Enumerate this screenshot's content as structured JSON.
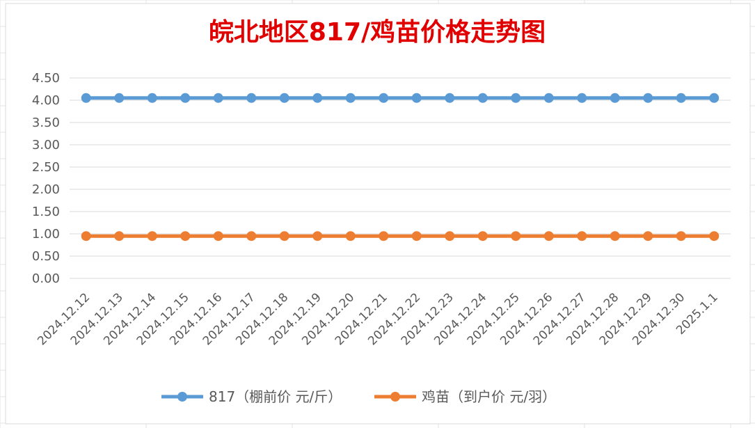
{
  "chart_data": {
    "type": "line",
    "title": "皖北地区817/鸡苗价格走势图",
    "title_color": "#e00000",
    "categories": [
      "2024.12.12",
      "2024.12.13",
      "2024.12.14",
      "2024.12.15",
      "2024.12.16",
      "2024.12.17",
      "2024.12.18",
      "2024.12.19",
      "2024.12.20",
      "2024.12.21",
      "2024.12.22",
      "2024.12.23",
      "2024.12.24",
      "2024.12.25",
      "2024.12.26",
      "2024.12.27",
      "2024.12.28",
      "2024.12.29",
      "2024.12.30",
      "2025.1.1"
    ],
    "series": [
      {
        "name": "817（棚前价 元/斤）",
        "color": "#5b9bd5",
        "values": [
          4.05,
          4.05,
          4.05,
          4.05,
          4.05,
          4.05,
          4.05,
          4.05,
          4.05,
          4.05,
          4.05,
          4.05,
          4.05,
          4.05,
          4.05,
          4.05,
          4.05,
          4.05,
          4.05,
          4.05
        ]
      },
      {
        "name": "鸡苗（到户价 元/羽）",
        "color": "#ed7d31",
        "values": [
          0.95,
          0.95,
          0.95,
          0.95,
          0.95,
          0.95,
          0.95,
          0.95,
          0.95,
          0.95,
          0.95,
          0.95,
          0.95,
          0.95,
          0.95,
          0.95,
          0.95,
          0.95,
          0.95,
          0.95
        ]
      }
    ],
    "yticks": [
      "0.00",
      "0.50",
      "1.00",
      "1.50",
      "2.00",
      "2.50",
      "3.00",
      "3.50",
      "4.00",
      "4.50"
    ],
    "ylim": [
      0,
      4.5
    ],
    "grid": true,
    "legend": "bottom"
  }
}
